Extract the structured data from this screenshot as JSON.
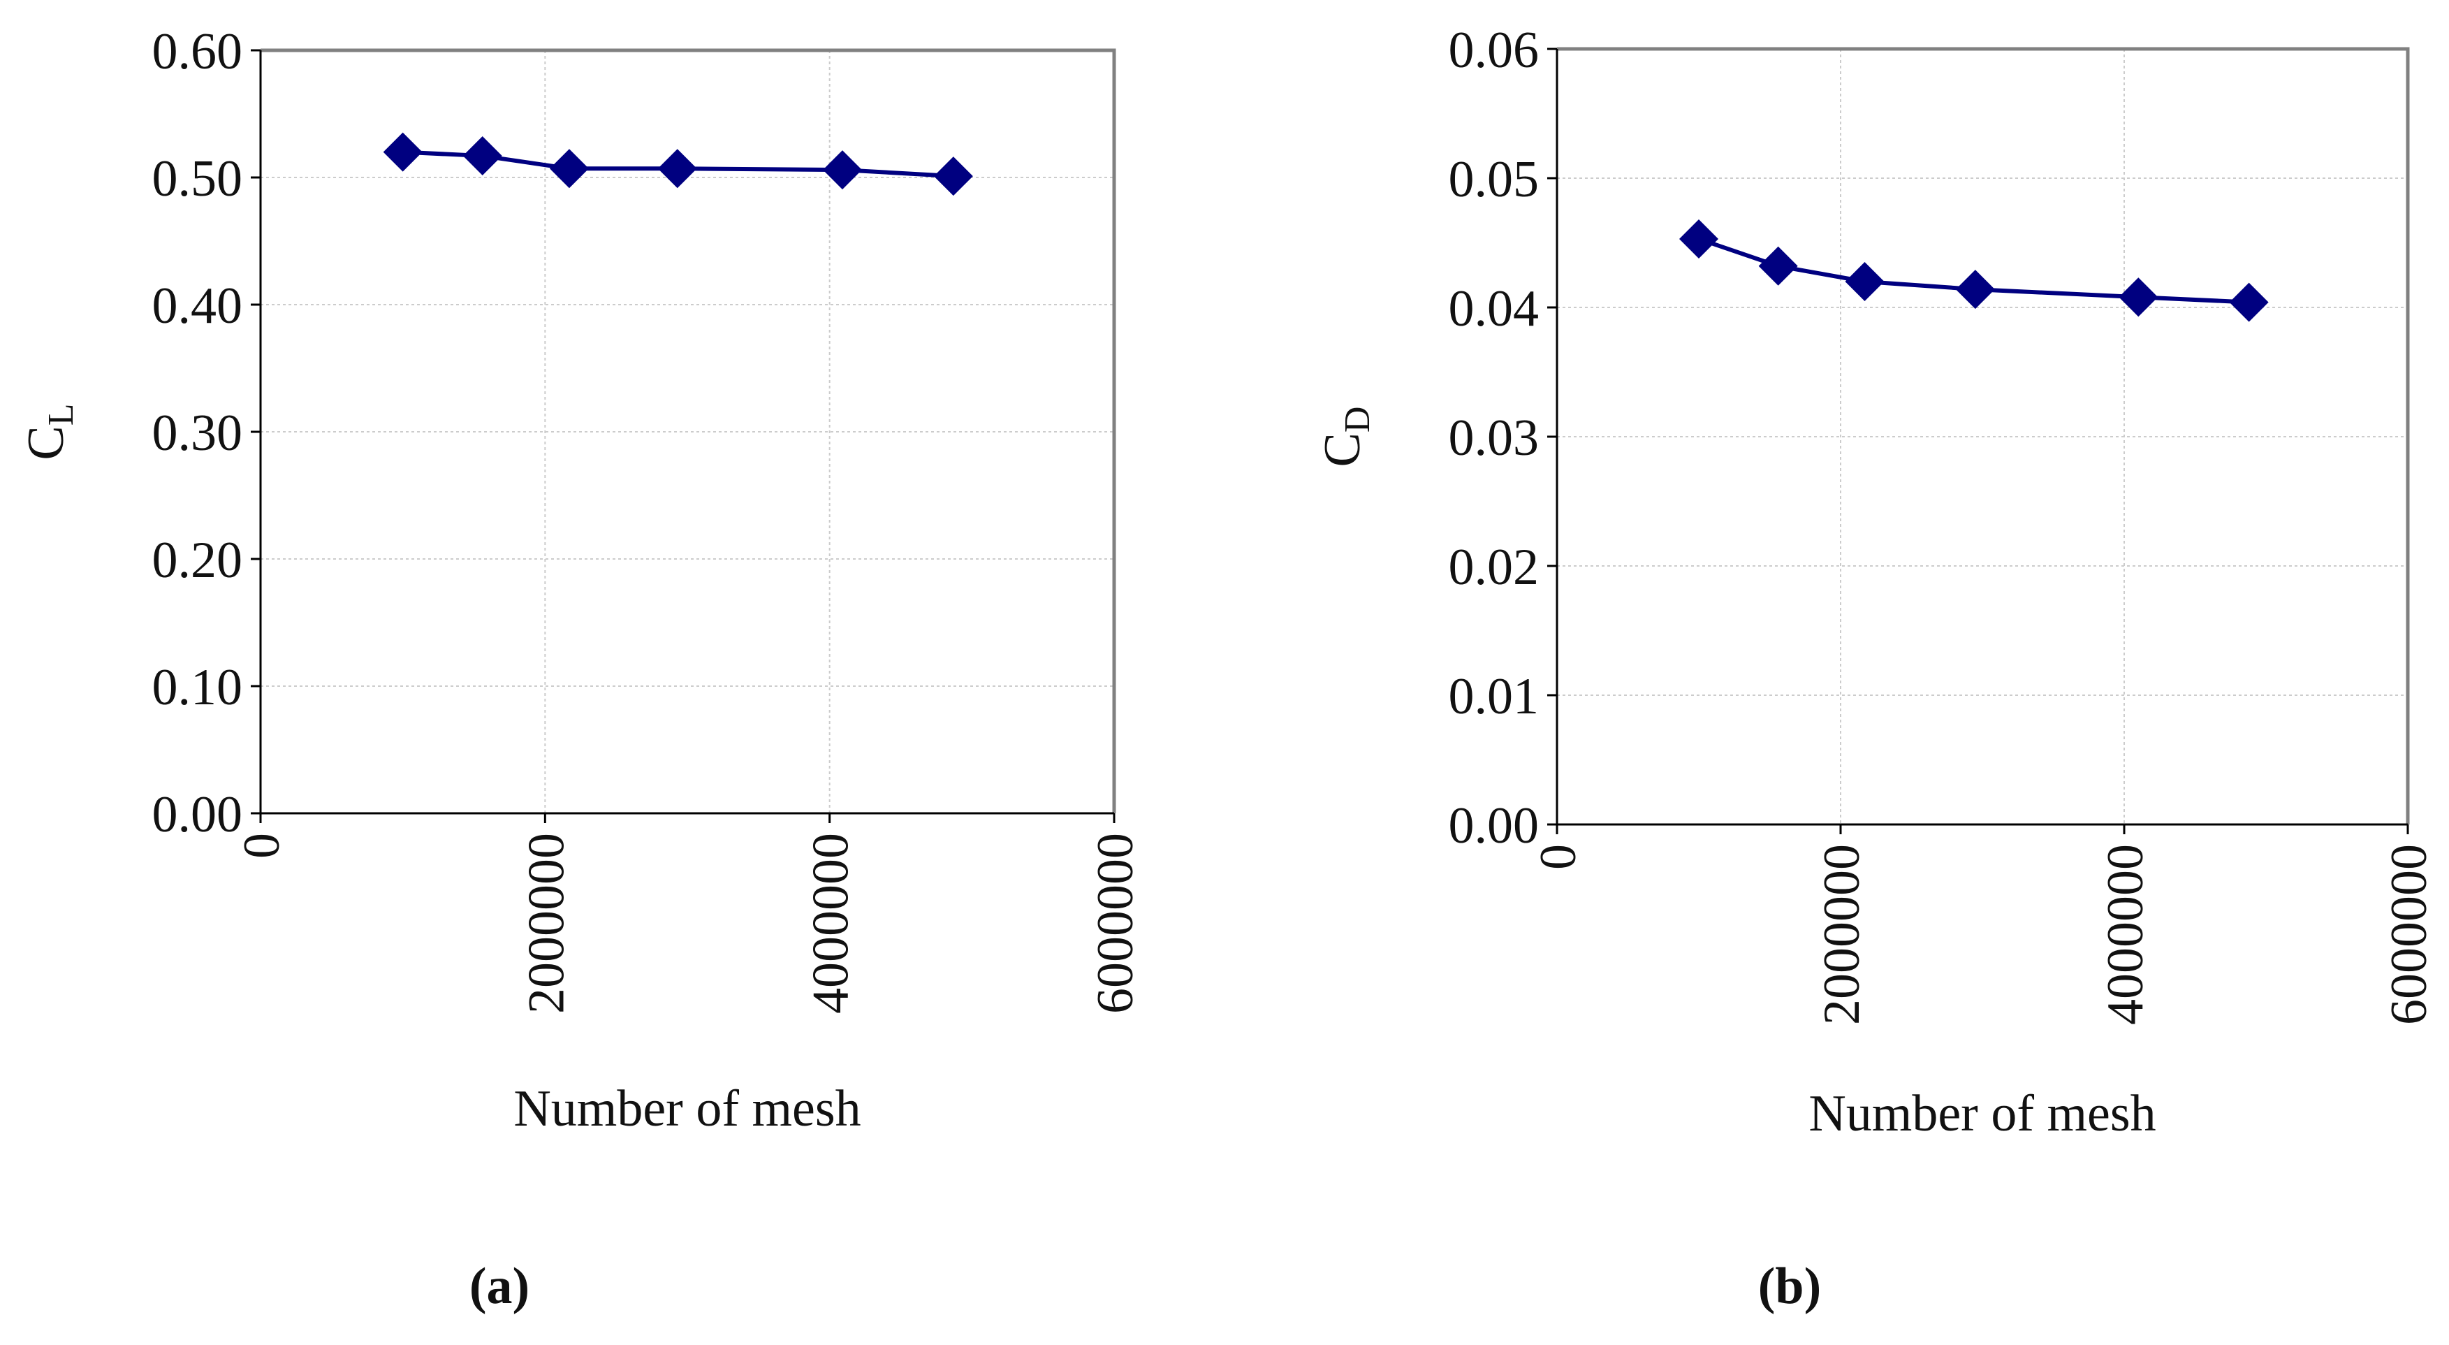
{
  "chart_data": [
    {
      "type": "line",
      "panel": "(a)",
      "xlabel": "Number of mesh",
      "ylabel": {
        "main": "C",
        "sub": "L"
      },
      "x": [
        1000000,
        1560000,
        2170000,
        2930000,
        4090000,
        4870000
      ],
      "series": [
        {
          "color": "#000080",
          "values": [
            0.52,
            0.517,
            0.507,
            0.507,
            0.506,
            0.501
          ]
        }
      ],
      "xlim": [
        0,
        6000000
      ],
      "xticks": [
        0,
        2000000,
        4000000,
        6000000
      ],
      "ylim": [
        0,
        0.6
      ],
      "yticks": [
        {
          "value": 0,
          "label": "0.00"
        },
        {
          "value": 0.1,
          "label": "0.10"
        },
        {
          "value": 0.2,
          "label": "0.20"
        },
        {
          "value": 0.3,
          "label": "0.30"
        },
        {
          "value": 0.4,
          "label": "0.40"
        },
        {
          "value": 0.5,
          "label": "0.50"
        },
        {
          "value": 0.6,
          "label": "0.60"
        }
      ],
      "grid": true
    },
    {
      "type": "line",
      "panel": "(b)",
      "xlabel": "Number of mesh",
      "ylabel": {
        "main": "C",
        "sub": "D"
      },
      "x": [
        1000000,
        1560000,
        2170000,
        2950000,
        4100000,
        4880000
      ],
      "series": [
        {
          "color": "#000080",
          "values": [
            0.0453,
            0.0432,
            0.042,
            0.0414,
            0.0408,
            0.0404
          ]
        }
      ],
      "xlim": [
        0,
        6000000
      ],
      "xticks": [
        0,
        2000000,
        4000000,
        6000000
      ],
      "ylim": [
        0,
        0.06
      ],
      "yticks": [
        {
          "value": 0,
          "label": "0.00"
        },
        0.01,
        0.02,
        0.03,
        0.04,
        0.05,
        0.06
      ],
      "grid": true
    }
  ]
}
